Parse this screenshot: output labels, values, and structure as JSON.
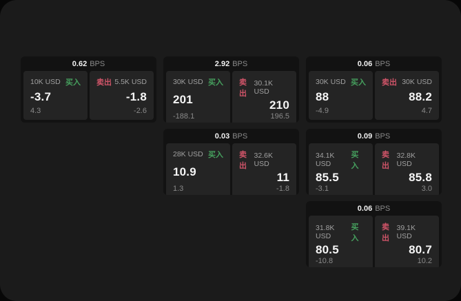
{
  "accent_colors": {
    "buy_green": "#46a05e",
    "sell_red": "#cf5468"
  },
  "bps_unit": "BPS",
  "cards": [
    {
      "bps": "0.62",
      "buy": {
        "amount": "10K USD",
        "label": "买入",
        "value": "-3.7",
        "sub": "4.3"
      },
      "sell": {
        "amount": "5.5K USD",
        "label": "卖出",
        "value": "-1.8",
        "sub": "-2.6"
      }
    },
    {
      "bps": "2.92",
      "buy": {
        "amount": "30K USD",
        "label": "买入",
        "value": "201",
        "sub": "-188.1"
      },
      "sell": {
        "amount": "30.1K USD",
        "label": "卖出",
        "value": "210",
        "sub": "196.5"
      }
    },
    {
      "bps": "0.06",
      "buy": {
        "amount": "30K USD",
        "label": "买入",
        "value": "88",
        "sub": "-4.9"
      },
      "sell": {
        "amount": "30K USD",
        "label": "卖出",
        "value": "88.2",
        "sub": "4.7"
      }
    },
    {
      "bps": "0.03",
      "buy": {
        "amount": "28K USD",
        "label": "买入",
        "value": "10.9",
        "sub": "1.3"
      },
      "sell": {
        "amount": "32.6K USD",
        "label": "卖出",
        "value": "11",
        "sub": "-1.8"
      }
    },
    {
      "bps": "0.09",
      "buy": {
        "amount": "34.1K USD",
        "label": "买入",
        "value": "85.5",
        "sub": "-3.1"
      },
      "sell": {
        "amount": "32.8K USD",
        "label": "卖出",
        "value": "85.8",
        "sub": "3.0"
      }
    },
    {
      "bps": "0.06",
      "buy": {
        "amount": "31.8K USD",
        "label": "买入",
        "value": "80.5",
        "sub": "-10.8"
      },
      "sell": {
        "amount": "39.1K USD",
        "label": "卖出",
        "value": "80.7",
        "sub": "10.2"
      }
    }
  ]
}
